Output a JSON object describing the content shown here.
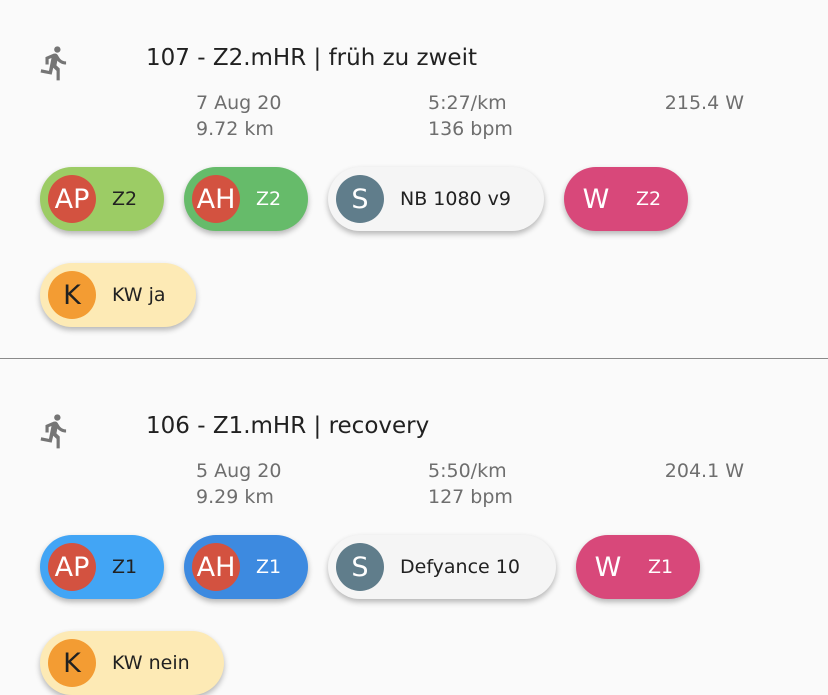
{
  "activities": [
    {
      "title": "107 - Z2.mHR | früh zu zweit",
      "date": "7 Aug 20",
      "distance": "9.72 km",
      "pace": "5:27/km",
      "heart_rate": "136 bpm",
      "power": "215.4 W",
      "chips": [
        {
          "avatar": "AP",
          "label": "Z2"
        },
        {
          "avatar": "AH",
          "label": "Z2"
        },
        {
          "avatar": "S",
          "label": "NB 1080 v9"
        },
        {
          "avatar": "W",
          "label": "Z2"
        },
        {
          "avatar": "K",
          "label": "KW ja"
        }
      ]
    },
    {
      "title": "106 - Z1.mHR | recovery",
      "date": "5 Aug 20",
      "distance": "9.29 km",
      "pace": "5:50/km",
      "heart_rate": "127 bpm",
      "power": "204.1 W",
      "chips": [
        {
          "avatar": "AP",
          "label": "Z1"
        },
        {
          "avatar": "AH",
          "label": "Z1"
        },
        {
          "avatar": "S",
          "label": "Defyance 10"
        },
        {
          "avatar": "W",
          "label": "Z1"
        },
        {
          "avatar": "K",
          "label": "KW nein"
        }
      ]
    }
  ],
  "colors": {
    "zone2_light_green": "#9ccc65",
    "zone2_green": "#66bb6a",
    "zone1_light_blue": "#42a5f5",
    "zone1_blue": "#3d8ae0",
    "shoe_chip": "#f5f5f5",
    "shoe_avatar": "#607d8b",
    "weather_pink": "#d8487a",
    "kw_yellow": "#fdeab5",
    "kw_orange": "#f39c33",
    "avatar_red": "#d35240",
    "run_icon": "#757575"
  }
}
